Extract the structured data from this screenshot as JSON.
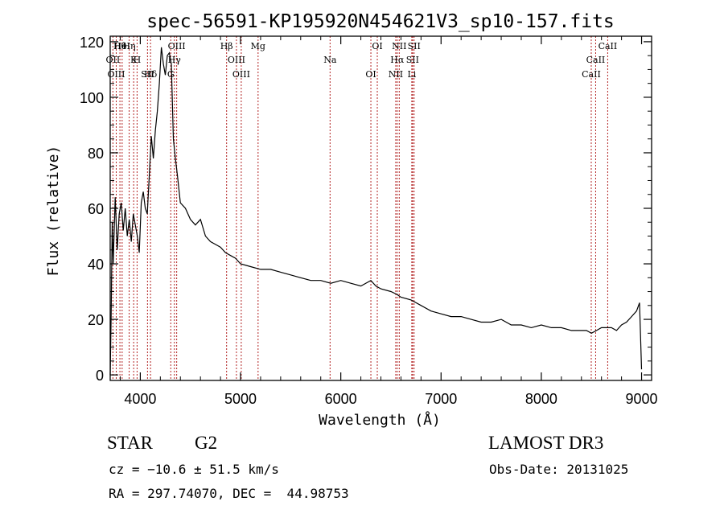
{
  "chart_data": {
    "type": "line",
    "title": "spec-56591-KP195920N454621V3_sp10-157.fits",
    "xlabel": "Wavelength (Å)",
    "ylabel": "Flux (relative)",
    "xlim": [
      3700,
      9100
    ],
    "ylim": [
      -2,
      122
    ],
    "xticks": [
      4000,
      5000,
      6000,
      7000,
      8000,
      9000
    ],
    "xtick_labels": [
      "4000",
      "5000",
      "6000",
      "7000",
      "8000",
      "9000"
    ],
    "yticks": [
      0,
      20,
      40,
      60,
      80,
      100,
      120
    ],
    "ytick_labels": [
      "0",
      "20",
      "40",
      "60",
      "80",
      "100",
      "120"
    ],
    "grid": false,
    "line_color": "#000000",
    "marker_line_color": "#b22222",
    "series": [
      {
        "x": [
          3700,
          3710,
          3720,
          3730,
          3750,
          3770,
          3790,
          3810,
          3830,
          3850,
          3870,
          3890,
          3910,
          3930,
          3950,
          3970,
          3990,
          4010,
          4030,
          4050,
          4070,
          4090,
          4110,
          4130,
          4150,
          4170,
          4190,
          4210,
          4230,
          4250,
          4270,
          4290,
          4310,
          4330,
          4350,
          4370,
          4400,
          4450,
          4500,
          4550,
          4600,
          4650,
          4700,
          4750,
          4800,
          4850,
          4900,
          4950,
          5000,
          5100,
          5200,
          5300,
          5400,
          5500,
          5600,
          5700,
          5800,
          5900,
          6000,
          6100,
          6200,
          6300,
          6350,
          6400,
          6500,
          6560,
          6600,
          6700,
          6800,
          6900,
          7000,
          7100,
          7200,
          7300,
          7400,
          7500,
          7600,
          7700,
          7800,
          7900,
          8000,
          8100,
          8200,
          8300,
          8400,
          8450,
          8500,
          8550,
          8600,
          8650,
          8700,
          8750,
          8800,
          8850,
          8900,
          8950,
          8980,
          9000
        ],
        "y": [
          0,
          22,
          55,
          40,
          64,
          45,
          58,
          62,
          52,
          60,
          50,
          56,
          48,
          58,
          54,
          50,
          44,
          62,
          66,
          60,
          58,
          72,
          86,
          78,
          88,
          95,
          105,
          118,
          112,
          108,
          115,
          116,
          112,
          85,
          78,
          72,
          62,
          60,
          56,
          54,
          56,
          50,
          48,
          47,
          46,
          44,
          43,
          42,
          40,
          39,
          38,
          38,
          37,
          36,
          35,
          34,
          34,
          33,
          34,
          33,
          32,
          34,
          32,
          31,
          30,
          29,
          28,
          27,
          25,
          23,
          22,
          21,
          21,
          20,
          19,
          19,
          20,
          18,
          18,
          17,
          18,
          17,
          17,
          16,
          16,
          16,
          15,
          16,
          17,
          17,
          17,
          16,
          18,
          19,
          21,
          23,
          26,
          2
        ]
      }
    ],
    "lines": [
      {
        "name": "Hθ",
        "x": 3797
      },
      {
        "name": "OII",
        "x": 3727
      },
      {
        "name": "OIII",
        "x": 3760
      },
      {
        "name": "HeI",
        "x": 3819
      },
      {
        "name": "K",
        "x": 3934
      },
      {
        "name": "SII",
        "x": 4072
      },
      {
        "name": "Hη",
        "x": 3889
      },
      {
        "name": "H",
        "x": 3968
      },
      {
        "name": "Hδ",
        "x": 4102
      },
      {
        "name": "OIII",
        "x": 4363
      },
      {
        "name": "Hγ",
        "x": 4340
      },
      {
        "name": "G",
        "x": 4304
      },
      {
        "name": "Hβ",
        "x": 4861
      },
      {
        "name": "OIII",
        "x": 4959
      },
      {
        "name": "OIII",
        "x": 5007
      },
      {
        "name": "Mg",
        "x": 5175
      },
      {
        "name": "Na",
        "x": 5893
      },
      {
        "name": "OI",
        "x": 6300
      },
      {
        "name": "OI",
        "x": 6364
      },
      {
        "name": "Hα",
        "x": 6563
      },
      {
        "name": "NII",
        "x": 6548
      },
      {
        "name": "NII",
        "x": 6583
      },
      {
        "name": "SII",
        "x": 6716
      },
      {
        "name": "Li",
        "x": 6708
      },
      {
        "name": "SII",
        "x": 6731
      },
      {
        "name": "CaII",
        "x": 8542
      },
      {
        "name": "CaII",
        "x": 8498
      },
      {
        "name": "CaII",
        "x": 8662
      }
    ]
  },
  "info": {
    "class_label": "STAR",
    "subclass_label": "G2",
    "survey_label": "LAMOST DR3",
    "cz_text": "cz = −10.6 ± 51.5 km/s",
    "obs_date_text": "Obs-Date: 20131025",
    "coords_text": "RA = 297.74070, DEC =  44.98753"
  }
}
